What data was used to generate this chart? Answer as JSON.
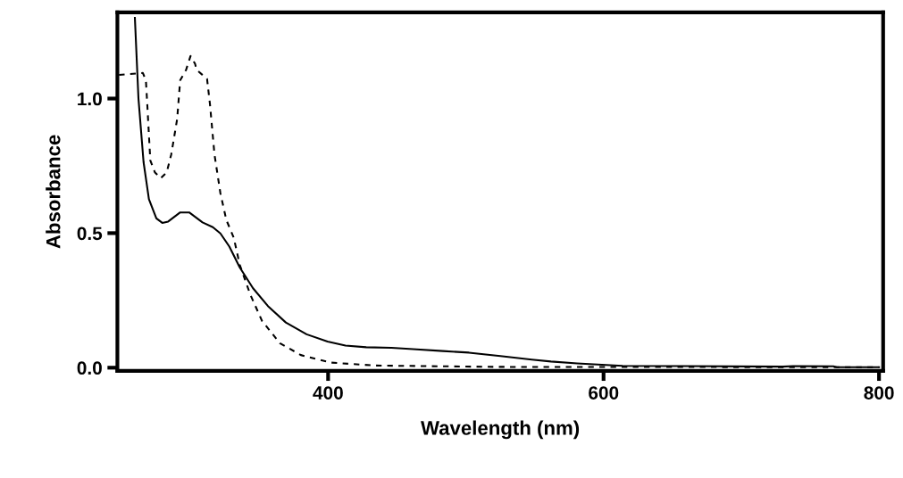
{
  "chart_data": {
    "type": "line",
    "xlabel": "Wavelength (nm)",
    "ylabel": "Absorbance",
    "xlim": [
      247,
      803
    ],
    "ylim": [
      -0.012,
      1.32
    ],
    "xticks": [
      400,
      600,
      800
    ],
    "yticks": [
      {
        "value": 0,
        "label": "0.0"
      },
      {
        "value": 0.5,
        "label": "0.5"
      },
      {
        "value": 1,
        "label": "1.0"
      }
    ],
    "grid": false,
    "legend": false,
    "marker": "none",
    "series": [
      {
        "color": "#000000",
        "line_style": "solid",
        "x": [
          259.7,
          262.3,
          266,
          269.9,
          275.3,
          279.6,
          283.9,
          292.6,
          299.1,
          308.8,
          316.3,
          321.8,
          328.3,
          335.8,
          345.5,
          356.3,
          369.3,
          384.4,
          399.6,
          412.6,
          427.7,
          446,
          461.7,
          483.3,
          502.3,
          525.1,
          547.9,
          561.8,
          580.8,
          613.8,
          730.3,
          737.7,
          766.9,
          769.5,
          800
        ],
        "values": [
          1.3,
          1.0,
          0.764,
          0.626,
          0.555,
          0.538,
          0.543,
          0.577,
          0.577,
          0.54,
          0.522,
          0.499,
          0.45,
          0.373,
          0.295,
          0.229,
          0.168,
          0.124,
          0.097,
          0.082,
          0.076,
          0.074,
          0.069,
          0.062,
          0.056,
          0.043,
          0.03,
          0.023,
          0.016,
          0.007,
          0.004,
          0.006,
          0.005,
          0.002,
          0.002
        ]
      },
      {
        "color": "#000000",
        "line_style": "dashed",
        "x": [
          248.2,
          265.5,
          267.7,
          268.8,
          270.9,
          274.2,
          278.5,
          282.8,
          286.1,
          290.4,
          292.6,
          296.9,
          300.1,
          303.4,
          304.5,
          312.1,
          314.2,
          317.5,
          321.8,
          326.1,
          331.5,
          335.8,
          343.4,
          352,
          365,
          380.2,
          401.8,
          434.2,
          522.4,
          800
        ],
        "values": [
          1.088,
          1.095,
          1.068,
          0.969,
          0.77,
          0.726,
          0.704,
          0.726,
          0.792,
          0.924,
          1.068,
          1.107,
          1.158,
          1.129,
          1.107,
          1.073,
          0.98,
          0.792,
          0.648,
          0.549,
          0.483,
          0.383,
          0.273,
          0.174,
          0.091,
          0.047,
          0.019,
          0.008,
          0.003,
          0.002
        ]
      }
    ]
  }
}
